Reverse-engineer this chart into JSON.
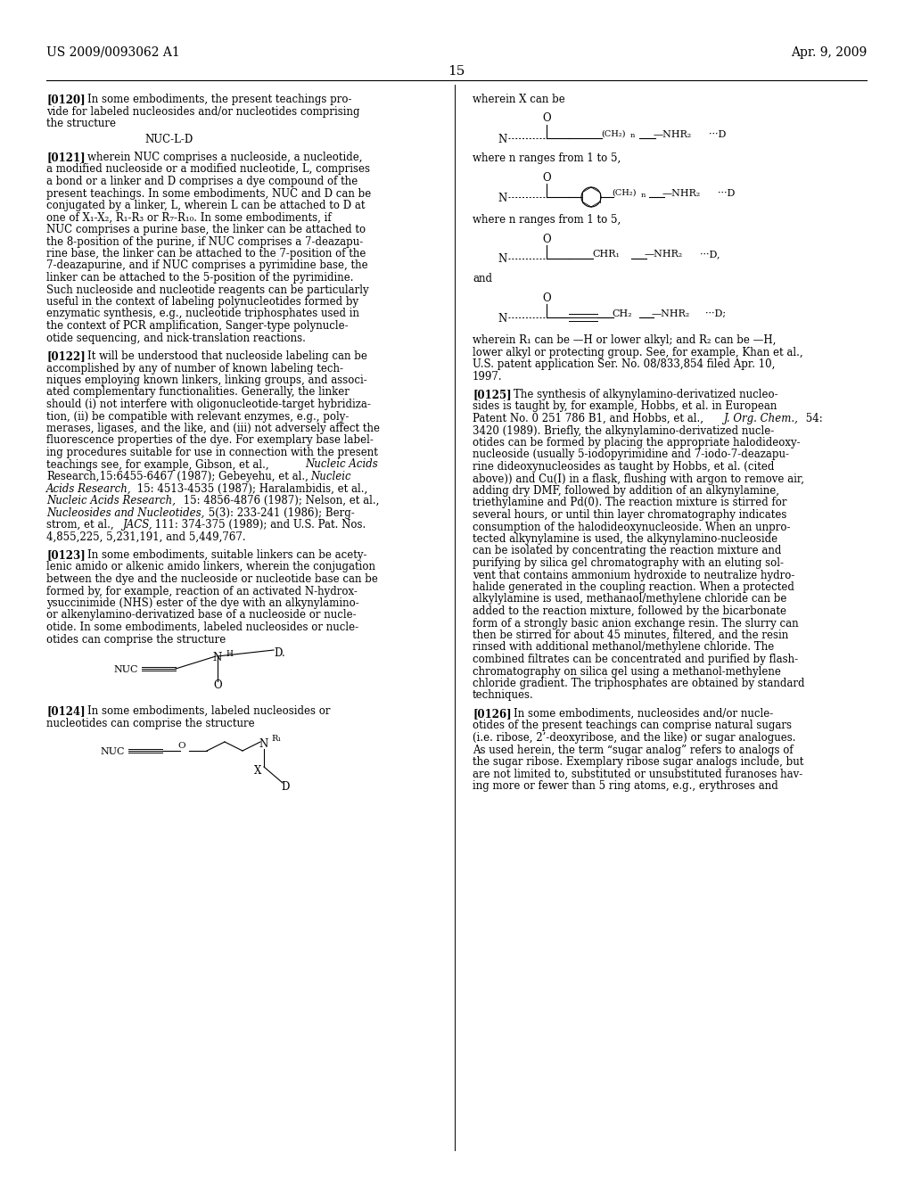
{
  "bg_color": "#ffffff",
  "header_left": "US 2009/0093062 A1",
  "header_right": "Apr. 9, 2009",
  "page_number": "15",
  "font_size_body": 8.5,
  "font_size_header": 10.0
}
